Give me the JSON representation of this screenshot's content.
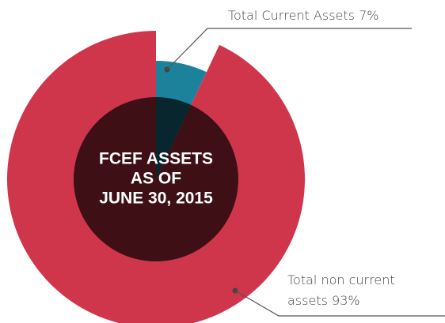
{
  "chart_data": {
    "type": "pie",
    "title": [
      "FCEF ASSETS",
      "AS OF",
      "JUNE 30, 2015"
    ],
    "categories": [
      "Total Current Assets",
      "Total non current assets"
    ],
    "values": [
      7,
      93
    ],
    "value_labels": [
      "7%",
      "93%"
    ],
    "colors": [
      "#1c819b",
      "#d0364b"
    ]
  }
}
